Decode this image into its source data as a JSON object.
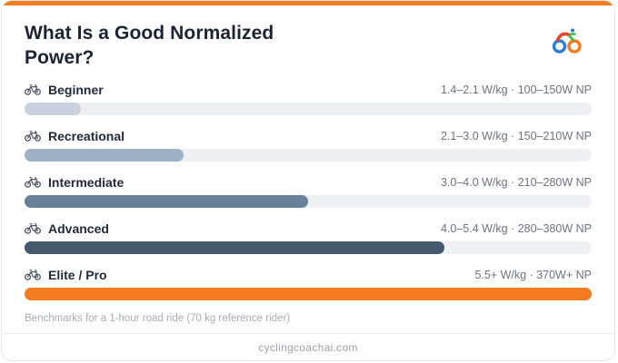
{
  "header": {
    "title": "What Is a Good Normalized Power?"
  },
  "rows": [
    {
      "label": "Beginner",
      "range": "1.4–2.1 W/kg · 100–150W NP",
      "pct": 10,
      "color": "#c8d1dd"
    },
    {
      "label": "Recreational",
      "range": "2.1–3.0 W/kg · 150–210W NP",
      "pct": 28,
      "color": "#9db0c5"
    },
    {
      "label": "Intermediate",
      "range": "3.0–4.0 W/kg · 210–280W NP",
      "pct": 50,
      "color": "#68809a"
    },
    {
      "label": "Advanced",
      "range": "4.0–5.4 W/kg · 280–380W NP",
      "pct": 74,
      "color": "#455a6e"
    },
    {
      "label": "Elite / Pro",
      "range": "5.5+ W/kg · 370W+ NP",
      "pct": 100,
      "color": "#f47b20"
    }
  ],
  "footnote": "Benchmarks for a 1-hour road ride (70 kg reference rider)",
  "footer": {
    "site": "cyclingcoachai.com"
  },
  "colors": {
    "accent": "#f47b20",
    "track": "#eef0f4",
    "title": "#1c2433",
    "range_text": "#6b7280",
    "logo_blue": "#2d7dd2",
    "logo_orange": "#f47b20",
    "logo_red": "#e8442e",
    "logo_green": "#3bb54a"
  },
  "icons": {
    "row_icon": "bicycle-icon",
    "brand_icon": "cyclist-logo-icon"
  },
  "chart_data": {
    "type": "bar",
    "orientation": "horizontal",
    "title": "What Is a Good Normalized Power?",
    "categories": [
      "Beginner",
      "Recreational",
      "Intermediate",
      "Advanced",
      "Elite / Pro"
    ],
    "series": [
      {
        "name": "relative_level_percent",
        "values": [
          10,
          28,
          50,
          74,
          100
        ]
      }
    ],
    "value_labels": [
      "1.4–2.1 W/kg · 100–150W NP",
      "2.1–3.0 W/kg · 150–210W NP",
      "3.0–4.0 W/kg · 210–280W NP",
      "4.0–5.4 W/kg · 280–380W NP",
      "5.5+ W/kg · 370W+ NP"
    ],
    "wkg_ranges": [
      [
        1.4,
        2.1
      ],
      [
        2.1,
        3.0
      ],
      [
        3.0,
        4.0
      ],
      [
        4.0,
        5.4
      ],
      [
        5.5,
        null
      ]
    ],
    "np_watt_ranges": [
      [
        100,
        150
      ],
      [
        150,
        210
      ],
      [
        210,
        280
      ],
      [
        280,
        380
      ],
      [
        370,
        null
      ]
    ],
    "bar_colors": [
      "#c8d1dd",
      "#9db0c5",
      "#68809a",
      "#455a6e",
      "#f47b20"
    ],
    "xlabel": "",
    "ylabel": "",
    "xlim": [
      0,
      100
    ],
    "grid": false,
    "legend": false,
    "note": "Benchmarks for a 1-hour road ride (70 kg reference rider)"
  }
}
